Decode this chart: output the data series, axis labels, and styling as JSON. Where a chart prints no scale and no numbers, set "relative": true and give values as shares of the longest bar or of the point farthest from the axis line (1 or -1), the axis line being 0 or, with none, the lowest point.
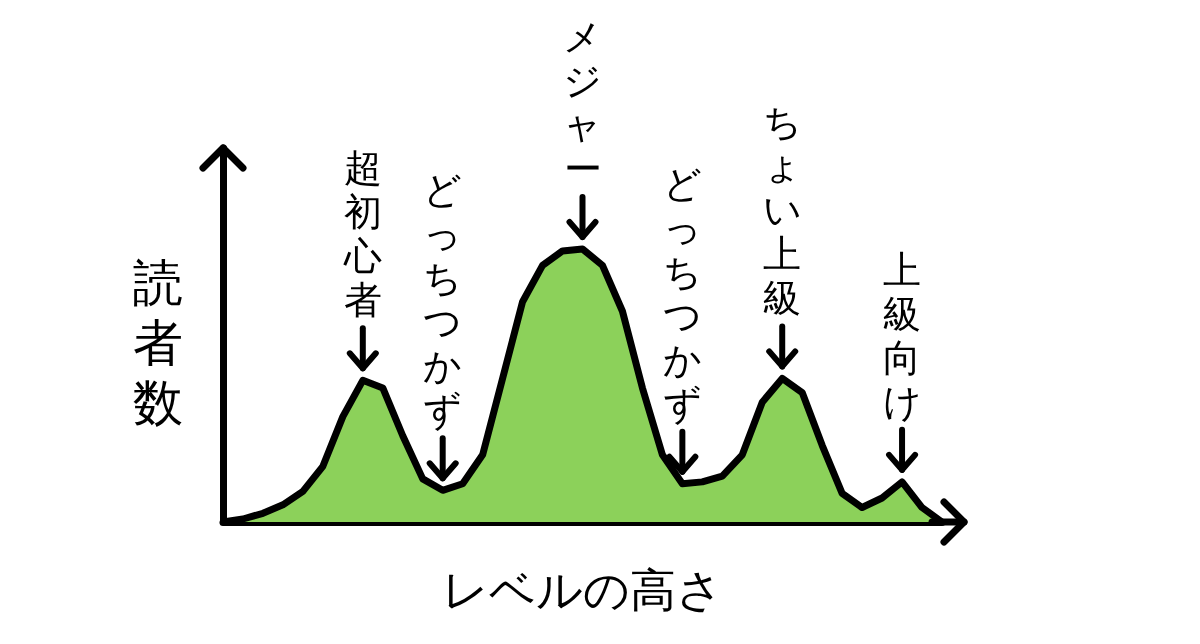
{
  "chart_data": {
    "type": "area",
    "relative": true,
    "xlabel": "レベルの高さ",
    "ylabel": "読者数",
    "grid": false,
    "marker": "none",
    "categories": [
      null,
      null,
      null,
      null,
      null,
      null,
      null,
      null,
      null,
      null,
      null,
      null,
      null,
      null,
      null,
      null,
      null,
      null,
      null,
      null,
      null,
      null,
      null,
      null,
      null,
      null,
      null,
      null,
      null,
      null,
      null,
      null,
      null,
      null,
      null,
      null,
      null
    ],
    "series": [
      {
        "color": "#8cd15a",
        "values": [
          0,
          0.011,
          0.032,
          0.063,
          0.112,
          0.204,
          0.386,
          0.519,
          0.491,
          0.316,
          0.158,
          0.116,
          0.14,
          0.246,
          0.526,
          0.807,
          0.94,
          0.993,
          1,
          0.94,
          0.772,
          0.491,
          0.246,
          0.14,
          0.147,
          0.168,
          0.246,
          0.439,
          0.526,
          0.474,
          0.281,
          0.105,
          0.053,
          0.088,
          0.147,
          0.053,
          0
        ]
      }
    ],
    "annotations": [
      {
        "text": "超初心者",
        "y": 0.519
      },
      {
        "text": "どっちつかず",
        "y": 0.116
      },
      {
        "text": "メジャー",
        "y": 1
      },
      {
        "text": "どっちつかず",
        "y": 0.14
      },
      {
        "text": "ちょい上級",
        "y": 0.526
      },
      {
        "text": "上級向け",
        "y": 0.147
      }
    ]
  }
}
